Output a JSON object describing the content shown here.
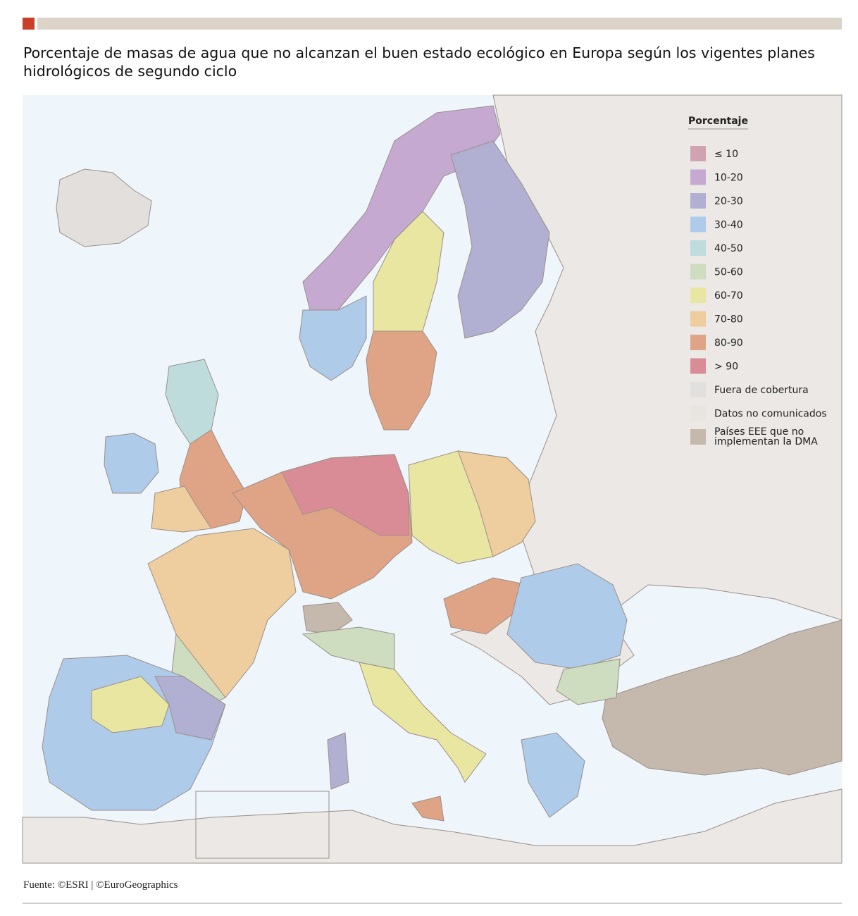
{
  "header": {
    "title": "Porcentaje de masas de agua que no alcanzan el buen estado ecológico en Europa según los vigentes planes hidrológicos de segundo ciclo"
  },
  "legend": {
    "title": "Porcentaje",
    "items": [
      {
        "label": "≤ 10",
        "color": "#cfa3b1"
      },
      {
        "label": "10-20",
        "color": "#c5a9d1"
      },
      {
        "label": "20-30",
        "color": "#b1afd2"
      },
      {
        "label": "30-40",
        "color": "#aecbea"
      },
      {
        "label": "40-50",
        "color": "#bfdcdd"
      },
      {
        "label": "50-60",
        "color": "#cedcbf"
      },
      {
        "label": "60-70",
        "color": "#e9e6a1"
      },
      {
        "label": "70-80",
        "color": "#eecd9f"
      },
      {
        "label": "80-90",
        "color": "#dfa486"
      },
      {
        "label": "> 90",
        "color": "#d98c95"
      },
      {
        "label": "Fuera de cobertura",
        "color": "#e2e0de"
      },
      {
        "label": "Datos no comunicados",
        "color": "#e8e4e0"
      },
      {
        "label": [
          "Países EEE que no",
          "implementan la DMA"
        ],
        "color": "#c5b8ad"
      }
    ]
  },
  "footer": {
    "source": "Fuente: ©ESRI | ©EuroGeographics"
  }
}
